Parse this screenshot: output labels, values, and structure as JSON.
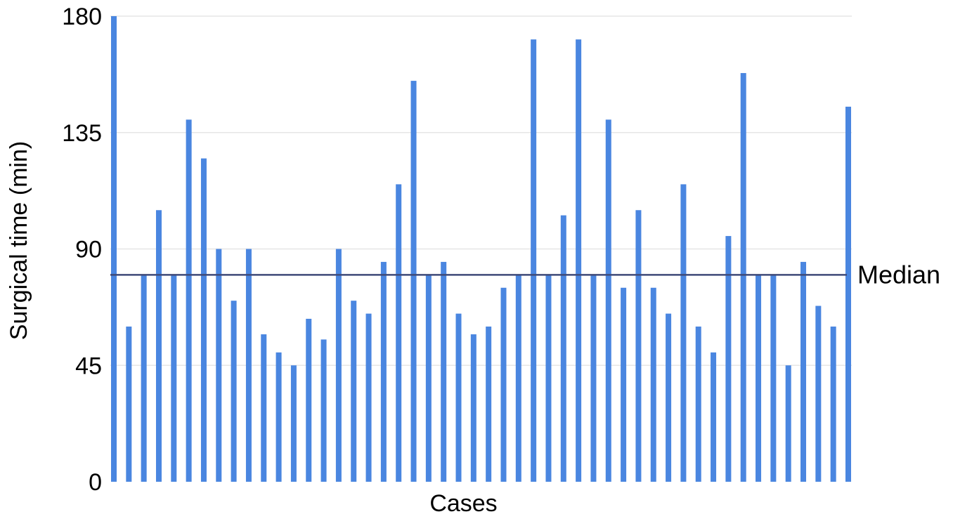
{
  "chart_data": {
    "type": "bar",
    "title": "",
    "xlabel": "Cases",
    "ylabel": "Surgical time (min)",
    "ylim": [
      0,
      180
    ],
    "yticks": [
      0,
      45,
      90,
      135,
      180
    ],
    "grid": true,
    "bar_color": "#4a86e0",
    "values": [
      180,
      60,
      80,
      105,
      80,
      140,
      125,
      90,
      70,
      90,
      57,
      50,
      45,
      63,
      55,
      90,
      70,
      65,
      85,
      115,
      155,
      80,
      85,
      65,
      57,
      60,
      75,
      80,
      171,
      80,
      103,
      171,
      80,
      140,
      75,
      105,
      75,
      65,
      115,
      60,
      50,
      95,
      158,
      80,
      80,
      45,
      85,
      68,
      60,
      145
    ],
    "median": {
      "value": 80,
      "label": "Median",
      "color": "#3f4a78"
    }
  }
}
